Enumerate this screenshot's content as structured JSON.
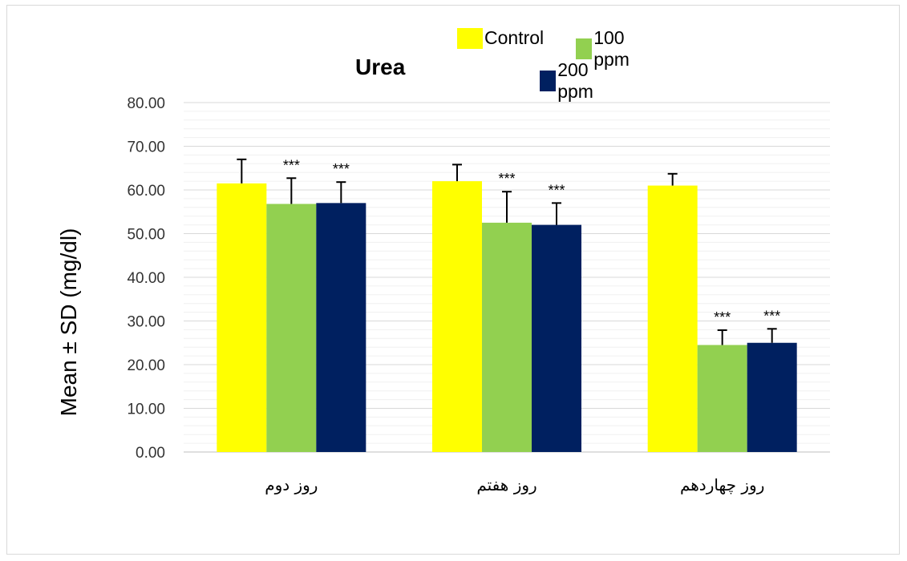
{
  "chart_data": {
    "type": "bar",
    "title": "Urea",
    "ylabel": "Mean ± SD (mg/dl)",
    "xlabel": "",
    "ylim": [
      0,
      80
    ],
    "yticks": [
      "0.00",
      "10.00",
      "20.00",
      "30.00",
      "40.00",
      "50.00",
      "60.00",
      "70.00",
      "80.00"
    ],
    "grid": "horizontal major and minor",
    "legend": "top",
    "categories": [
      "روز دوم",
      "روز هفتم",
      "روز چهاردهم"
    ],
    "series": [
      {
        "name": "Control",
        "color": "#ffff00",
        "values": [
          61.5,
          62.0,
          61.0
        ],
        "sd": [
          5.5,
          3.8,
          2.7
        ],
        "annotations": [
          "",
          "",
          ""
        ]
      },
      {
        "name": "100 ppm",
        "color": "#92d050",
        "values": [
          56.8,
          52.5,
          24.5
        ],
        "sd": [
          5.9,
          7.1,
          3.4
        ],
        "annotations": [
          "***",
          "***",
          "***"
        ]
      },
      {
        "name": "200 ppm",
        "color": "#002060",
        "values": [
          57.0,
          52.0,
          25.0
        ],
        "sd": [
          4.8,
          5.0,
          3.2
        ],
        "annotations": [
          "***",
          "***",
          "***"
        ]
      }
    ]
  }
}
